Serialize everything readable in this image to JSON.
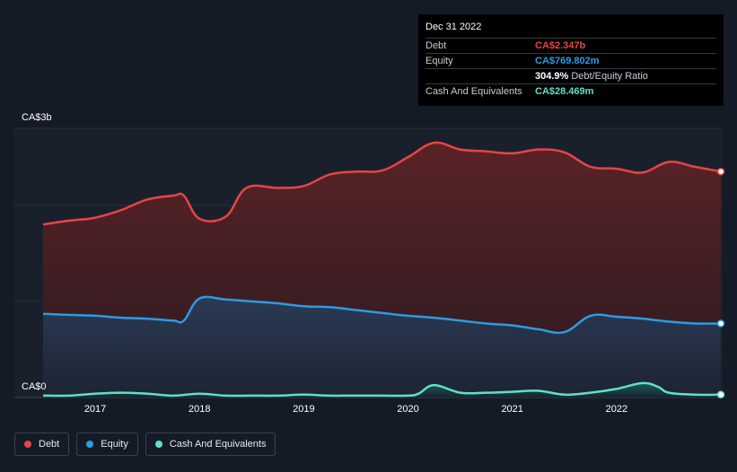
{
  "colors": {
    "debt": "#e64545",
    "equity": "#2d9be3",
    "cash": "#5fe0c8"
  },
  "tooltip": {
    "date": "Dec 31 2022",
    "rows": [
      {
        "label": "Debt",
        "value": "CA$2.347b",
        "color": "#e64545"
      },
      {
        "label": "Equity",
        "value": "CA$769.802m",
        "color": "#2d9be3"
      },
      {
        "label": "",
        "value": "304.9%",
        "extra": "Debt/Equity Ratio",
        "color": "#ffffff"
      },
      {
        "label": "Cash And Equivalents",
        "value": "CA$28.469m",
        "color": "#5fe0c8"
      }
    ]
  },
  "chart_data": {
    "type": "area",
    "ylim": [
      0,
      2.8
    ],
    "y_tick_labels": [
      "CA$0",
      "CA$3b"
    ],
    "x_tick_labels": [
      "2017",
      "2018",
      "2019",
      "2020",
      "2021",
      "2022"
    ],
    "x_tick_values": [
      2017.0,
      2018.0,
      2019.0,
      2020.0,
      2021.0,
      2022.0
    ],
    "xlim": [
      2016.5,
      2023.0
    ],
    "legend_position": "bottom-left",
    "series": [
      {
        "name": "Debt",
        "x": [
          2016.5,
          2016.75,
          2017.0,
          2017.25,
          2017.5,
          2017.75,
          2017.85,
          2018.0,
          2018.25,
          2018.45,
          2018.75,
          2019.0,
          2019.25,
          2019.5,
          2019.75,
          2020.0,
          2020.25,
          2020.5,
          2020.75,
          2021.0,
          2021.25,
          2021.5,
          2021.75,
          2022.0,
          2022.25,
          2022.5,
          2022.75,
          2023.0
        ],
        "values": [
          1.8,
          1.84,
          1.87,
          1.95,
          2.06,
          2.1,
          2.1,
          1.86,
          1.88,
          2.18,
          2.18,
          2.2,
          2.32,
          2.35,
          2.36,
          2.5,
          2.65,
          2.58,
          2.56,
          2.54,
          2.58,
          2.55,
          2.4,
          2.38,
          2.34,
          2.45,
          2.4,
          2.35
        ]
      },
      {
        "name": "Equity",
        "x": [
          2016.5,
          2016.75,
          2017.0,
          2017.25,
          2017.5,
          2017.75,
          2017.85,
          2018.0,
          2018.25,
          2018.5,
          2018.75,
          2019.0,
          2019.25,
          2019.5,
          2019.75,
          2020.0,
          2020.25,
          2020.5,
          2020.75,
          2021.0,
          2021.25,
          2021.5,
          2021.75,
          2022.0,
          2022.25,
          2022.5,
          2022.75,
          2023.0
        ],
        "values": [
          0.87,
          0.86,
          0.85,
          0.83,
          0.82,
          0.8,
          0.8,
          1.03,
          1.02,
          1.0,
          0.98,
          0.95,
          0.94,
          0.91,
          0.88,
          0.85,
          0.83,
          0.8,
          0.77,
          0.75,
          0.71,
          0.68,
          0.85,
          0.84,
          0.82,
          0.79,
          0.77,
          0.77
        ]
      },
      {
        "name": "Cash And Equivalents",
        "x": [
          2016.5,
          2016.75,
          2017.0,
          2017.25,
          2017.5,
          2017.75,
          2018.0,
          2018.25,
          2018.5,
          2018.75,
          2019.0,
          2019.25,
          2019.5,
          2019.75,
          2020.0,
          2020.1,
          2020.25,
          2020.5,
          2020.75,
          2021.0,
          2021.25,
          2021.5,
          2021.75,
          2022.0,
          2022.25,
          2022.4,
          2022.5,
          2022.75,
          2023.0
        ],
        "values": [
          0.02,
          0.02,
          0.04,
          0.05,
          0.04,
          0.02,
          0.04,
          0.02,
          0.02,
          0.02,
          0.03,
          0.02,
          0.02,
          0.02,
          0.02,
          0.04,
          0.13,
          0.05,
          0.05,
          0.06,
          0.07,
          0.03,
          0.05,
          0.09,
          0.15,
          0.11,
          0.05,
          0.03,
          0.03
        ]
      }
    ]
  }
}
